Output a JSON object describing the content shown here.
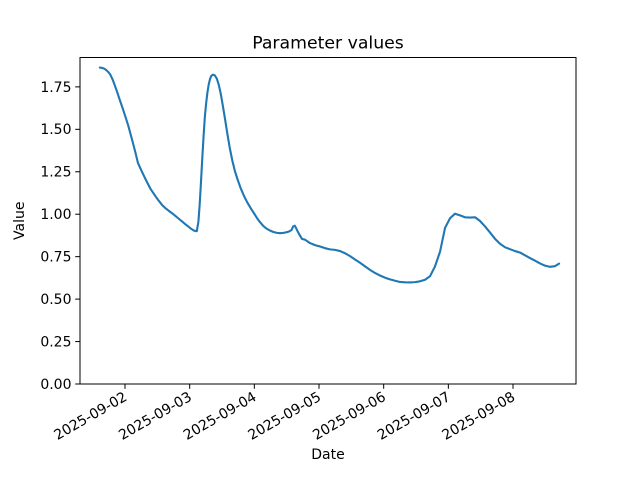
{
  "figure": {
    "title": "Parameter values",
    "xlabel": "Date",
    "ylabel": "Value"
  },
  "colors": {
    "line": "#1f77b4",
    "text": "#000000",
    "spine": "#000000",
    "background": "#ffffff"
  },
  "chart_data": {
    "type": "line",
    "title": "Parameter values",
    "xlabel": "Date",
    "ylabel": "Value",
    "grid": false,
    "legend": "none",
    "x_unit": "days since 2025-09-01 00:00",
    "xlim": [
      0.304,
      7.974
    ],
    "ylim": [
      0,
      1.923
    ],
    "x_ticks": [
      {
        "t": 1,
        "label": "2025-09-02"
      },
      {
        "t": 2,
        "label": "2025-09-03"
      },
      {
        "t": 3,
        "label": "2025-09-04"
      },
      {
        "t": 4,
        "label": "2025-09-05"
      },
      {
        "t": 5,
        "label": "2025-09-06"
      },
      {
        "t": 6,
        "label": "2025-09-07"
      },
      {
        "t": 7,
        "label": "2025-09-08"
      }
    ],
    "y_ticks": [
      {
        "v": 0.0,
        "label": "0.00"
      },
      {
        "v": 0.25,
        "label": "0.25"
      },
      {
        "v": 0.5,
        "label": "0.50"
      },
      {
        "v": 0.75,
        "label": "0.75"
      },
      {
        "v": 1.0,
        "label": "1.00"
      },
      {
        "v": 1.25,
        "label": "1.25"
      },
      {
        "v": 1.5,
        "label": "1.50"
      },
      {
        "v": 1.75,
        "label": "1.75"
      }
    ],
    "series": [
      {
        "name": "parameter-values",
        "color": "#1f77b4",
        "points": [
          [
            0.61,
            1.864
          ],
          [
            0.655,
            1.861
          ],
          [
            0.69,
            1.855
          ],
          [
            0.73,
            1.842
          ],
          [
            0.77,
            1.824
          ],
          [
            0.81,
            1.792
          ],
          [
            0.845,
            1.756
          ],
          [
            0.88,
            1.718
          ],
          [
            0.92,
            1.672
          ],
          [
            0.96,
            1.628
          ],
          [
            1.0,
            1.582
          ],
          [
            1.05,
            1.522
          ],
          [
            1.11,
            1.438
          ],
          [
            1.16,
            1.365
          ],
          [
            1.2,
            1.302
          ],
          [
            1.26,
            1.252
          ],
          [
            1.31,
            1.212
          ],
          [
            1.39,
            1.152
          ],
          [
            1.46,
            1.112
          ],
          [
            1.51,
            1.085
          ],
          [
            1.57,
            1.056
          ],
          [
            1.62,
            1.037
          ],
          [
            1.67,
            1.022
          ],
          [
            1.72,
            1.008
          ],
          [
            1.77,
            0.993
          ],
          [
            1.82,
            0.977
          ],
          [
            1.88,
            0.958
          ],
          [
            1.93,
            0.942
          ],
          [
            1.98,
            0.927
          ],
          [
            2.03,
            0.912
          ],
          [
            2.07,
            0.903
          ],
          [
            2.11,
            0.9
          ],
          [
            2.135,
            0.955
          ],
          [
            2.155,
            1.06
          ],
          [
            2.175,
            1.19
          ],
          [
            2.195,
            1.33
          ],
          [
            2.215,
            1.46
          ],
          [
            2.235,
            1.575
          ],
          [
            2.255,
            1.655
          ],
          [
            2.275,
            1.718
          ],
          [
            2.295,
            1.765
          ],
          [
            2.315,
            1.797
          ],
          [
            2.335,
            1.815
          ],
          [
            2.36,
            1.822
          ],
          [
            2.39,
            1.817
          ],
          [
            2.42,
            1.798
          ],
          [
            2.45,
            1.762
          ],
          [
            2.48,
            1.71
          ],
          [
            2.51,
            1.645
          ],
          [
            2.545,
            1.565
          ],
          [
            2.58,
            1.48
          ],
          [
            2.62,
            1.39
          ],
          [
            2.66,
            1.315
          ],
          [
            2.7,
            1.253
          ],
          [
            2.745,
            1.2
          ],
          [
            2.79,
            1.152
          ],
          [
            2.84,
            1.108
          ],
          [
            2.89,
            1.07
          ],
          [
            2.94,
            1.038
          ],
          [
            2.99,
            1.008
          ],
          [
            3.04,
            0.978
          ],
          [
            3.09,
            0.952
          ],
          [
            3.14,
            0.93
          ],
          [
            3.19,
            0.915
          ],
          [
            3.24,
            0.904
          ],
          [
            3.29,
            0.896
          ],
          [
            3.35,
            0.89
          ],
          [
            3.4,
            0.888
          ],
          [
            3.45,
            0.89
          ],
          [
            3.5,
            0.894
          ],
          [
            3.54,
            0.899
          ],
          [
            3.575,
            0.907
          ],
          [
            3.6,
            0.928
          ],
          [
            3.625,
            0.932
          ],
          [
            3.65,
            0.915
          ],
          [
            3.675,
            0.895
          ],
          [
            3.7,
            0.878
          ],
          [
            3.735,
            0.855
          ],
          [
            3.784,
            0.85
          ],
          [
            3.861,
            0.83
          ],
          [
            3.938,
            0.818
          ],
          [
            4.016,
            0.81
          ],
          [
            4.093,
            0.8
          ],
          [
            4.17,
            0.793
          ],
          [
            4.248,
            0.79
          ],
          [
            4.325,
            0.783
          ],
          [
            4.402,
            0.77
          ],
          [
            4.48,
            0.753
          ],
          [
            4.557,
            0.733
          ],
          [
            4.634,
            0.714
          ],
          [
            4.712,
            0.693
          ],
          [
            4.789,
            0.672
          ],
          [
            4.866,
            0.654
          ],
          [
            4.944,
            0.639
          ],
          [
            5.021,
            0.626
          ],
          [
            5.098,
            0.616
          ],
          [
            5.176,
            0.608
          ],
          [
            5.253,
            0.601
          ],
          [
            5.33,
            0.599
          ],
          [
            5.408,
            0.598
          ],
          [
            5.485,
            0.6
          ],
          [
            5.562,
            0.605
          ],
          [
            5.64,
            0.614
          ],
          [
            5.717,
            0.635
          ],
          [
            5.794,
            0.693
          ],
          [
            5.872,
            0.78
          ],
          [
            5.949,
            0.92
          ],
          [
            6.026,
            0.976
          ],
          [
            6.103,
            1.003
          ],
          [
            6.181,
            0.993
          ],
          [
            6.258,
            0.982
          ],
          [
            6.335,
            0.98
          ],
          [
            6.413,
            0.982
          ],
          [
            6.49,
            0.96
          ],
          [
            6.567,
            0.928
          ],
          [
            6.645,
            0.892
          ],
          [
            6.722,
            0.855
          ],
          [
            6.799,
            0.826
          ],
          [
            6.877,
            0.805
          ],
          [
            6.954,
            0.794
          ],
          [
            7.031,
            0.783
          ],
          [
            7.109,
            0.774
          ],
          [
            7.186,
            0.758
          ],
          [
            7.263,
            0.742
          ],
          [
            7.341,
            0.726
          ],
          [
            7.418,
            0.71
          ],
          [
            7.495,
            0.697
          ],
          [
            7.573,
            0.69
          ],
          [
            7.65,
            0.694
          ],
          [
            7.712,
            0.709
          ]
        ]
      }
    ]
  }
}
